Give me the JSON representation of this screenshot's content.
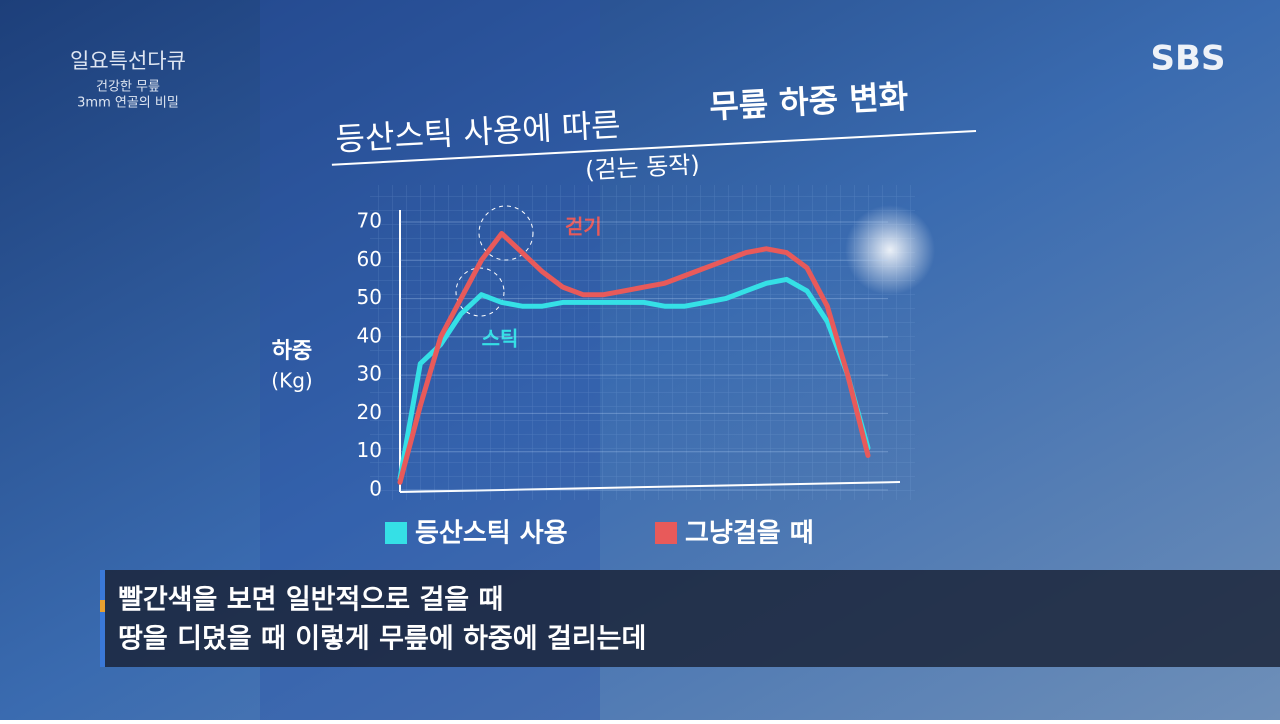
{
  "overlay": {
    "program": "일요특선다큐",
    "episode_line1": "건강한 무릎",
    "episode_line2": "3mm 연골의 비밀",
    "logo": "SBS",
    "caption_line1": "빨간색을 보면 일반적으로 걸을 때",
    "caption_line2": "땅을 디뎠을 때 이렇게 무릎에 하중에 걸리는데"
  },
  "chart_data": {
    "type": "line",
    "title": "등산스틱 사용에 따른",
    "title_emphasis": "무릎 하중 변화",
    "subtitle": "(걷는 동작)",
    "ylabel": "하중",
    "ylabel_unit": "(Kg)",
    "annotations": [
      {
        "text": "걷기",
        "color": "#e85a5a"
      },
      {
        "text": "스틱",
        "color": "#35e0e6"
      }
    ],
    "categories": [
      null,
      null,
      null,
      null,
      null,
      null,
      null,
      null,
      null,
      null,
      null,
      null,
      null,
      null,
      null,
      null,
      null,
      null,
      null,
      null,
      null,
      null,
      null,
      null
    ],
    "series": [
      {
        "name": "등산스틱 사용",
        "color": "#35e0e6",
        "values": [
          3,
          33,
          38,
          46,
          51,
          49,
          48,
          48,
          49,
          49,
          49,
          49,
          49,
          48,
          48,
          49,
          50,
          52,
          54,
          55,
          52,
          44,
          30,
          11
        ]
      },
      {
        "name": "그냥걸을 때",
        "color": "#e85a5a",
        "values": [
          2,
          22,
          40,
          50,
          60,
          67,
          62,
          57,
          53,
          51,
          51,
          52,
          53,
          54,
          56,
          58,
          60,
          62,
          63,
          62,
          58,
          48,
          30,
          9
        ]
      }
    ],
    "ylim": [
      0,
      70
    ],
    "yticks": [
      0,
      10,
      20,
      30,
      40,
      50,
      60,
      70
    ],
    "grid": true
  }
}
